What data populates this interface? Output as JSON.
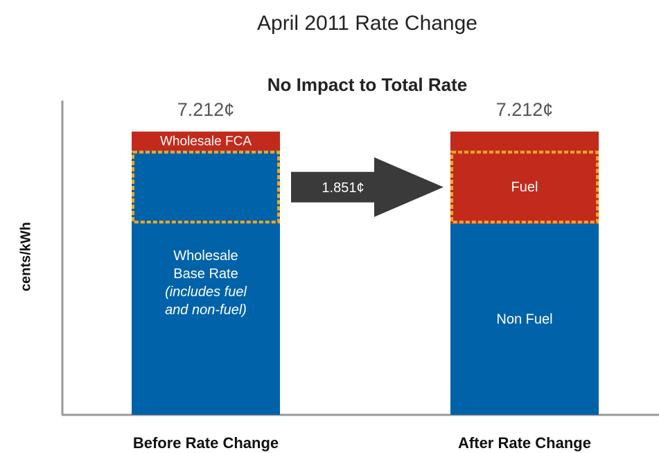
{
  "chart_data": {
    "type": "stacked_bar",
    "title": "April 2011 Rate Change",
    "subtitle": "No Impact to Total Rate",
    "y_label": "cents/kWh",
    "ylim": [
      0,
      8
    ],
    "bars": [
      {
        "category": "Before Rate Change",
        "total": 7.212,
        "total_label": "7.212¢",
        "segments": [
          {
            "label_lines": [
              "Wholesale",
              "Base Rate"
            ],
            "note_lines": [
              "(includes fuel",
              "and non-fuel)"
            ],
            "value": 6.722,
            "color": "#0062a8"
          },
          {
            "label_lines": [
              "Wholesale FCA"
            ],
            "value": 0.49,
            "color": "#c22a1b"
          }
        ]
      },
      {
        "category": "After Rate Change",
        "total": 7.212,
        "total_label": "7.212¢",
        "segments": [
          {
            "label_lines": [
              "Non Fuel"
            ],
            "value": 4.871,
            "color": "#0062a8"
          },
          {
            "label_lines": [
              "Fuel"
            ],
            "value": 1.851,
            "color": "#c22a1b"
          },
          {
            "value": 0.49,
            "color": "#c22a1b"
          }
        ]
      }
    ],
    "shift": {
      "label": "1.851¢",
      "value": 1.851,
      "color": "#3a3a3a",
      "box_color": "#f5a623"
    }
  }
}
